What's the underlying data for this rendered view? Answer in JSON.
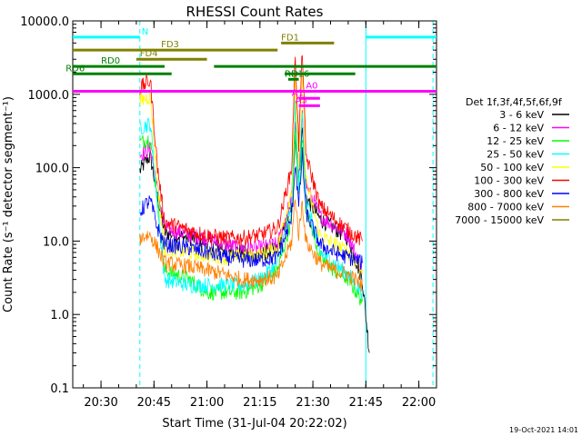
{
  "chart_data": {
    "type": "line",
    "title": "RHESSI Count Rates",
    "xlabel": "Start Time (31-Jul-04 20:22:02)",
    "ylabel": "Count Rate (s⁻¹ detector segment⁻¹)",
    "footer": "19-Oct-2021 14:01",
    "y_scale": "log",
    "ylim": [
      0.1,
      10000
    ],
    "y_ticks": [
      {
        "value": 0.1,
        "label": "0.1"
      },
      {
        "value": 1,
        "label": "1.0"
      },
      {
        "value": 10,
        "label": "10.0"
      },
      {
        "value": 100,
        "label": "100.0"
      },
      {
        "value": 1000,
        "label": "1000.0"
      },
      {
        "value": 10000,
        "label": "10000.0"
      }
    ],
    "xlim_minutes": [
      22,
      125
    ],
    "x_ticks": [
      {
        "value": 30,
        "label": "20:30"
      },
      {
        "value": 45,
        "label": "20:45"
      },
      {
        "value": 60,
        "label": "21:00"
      },
      {
        "value": 75,
        "label": "21:15"
      },
      {
        "value": 90,
        "label": "21:30"
      },
      {
        "value": 105,
        "label": "21:45"
      },
      {
        "value": 120,
        "label": "22:00"
      }
    ],
    "legend_title": "Det 1f,3f,4f,5f,6f,9f",
    "legend_position": "right",
    "series": [
      {
        "name": "3 - 6 keV",
        "color": "#000000",
        "points": [
          [
            41,
            90
          ],
          [
            43,
            130
          ],
          [
            44,
            140
          ],
          [
            46,
            40
          ],
          [
            48,
            13
          ],
          [
            55,
            11
          ],
          [
            60,
            9.5
          ],
          [
            65,
            8
          ],
          [
            70,
            7
          ],
          [
            75,
            6.5
          ],
          [
            80,
            8
          ],
          [
            84,
            30
          ],
          [
            85,
            300
          ],
          [
            86,
            60
          ],
          [
            87,
            350
          ],
          [
            88,
            40
          ],
          [
            92,
            20
          ],
          [
            96,
            15
          ],
          [
            100,
            11
          ],
          [
            104,
            3
          ],
          [
            106,
            0.3
          ]
        ]
      },
      {
        "name": "6 - 12 keV",
        "color": "#ff00ff",
        "points": [
          [
            41,
            150
          ],
          [
            43,
            170
          ],
          [
            44,
            180
          ],
          [
            46,
            50
          ],
          [
            48,
            15
          ],
          [
            55,
            12
          ],
          [
            60,
            11
          ],
          [
            65,
            9
          ],
          [
            70,
            8
          ],
          [
            75,
            8
          ],
          [
            80,
            9
          ],
          [
            84,
            40
          ],
          [
            85,
            450
          ],
          [
            86,
            70
          ],
          [
            87,
            500
          ],
          [
            88,
            60
          ],
          [
            92,
            22
          ],
          [
            96,
            16
          ],
          [
            100,
            12
          ],
          [
            104,
            4
          ]
        ]
      },
      {
        "name": "12 - 25 keV",
        "color": "#00ff00",
        "points": [
          [
            41,
            220
          ],
          [
            43,
            240
          ],
          [
            44,
            250
          ],
          [
            46,
            35
          ],
          [
            48,
            4
          ],
          [
            55,
            3
          ],
          [
            60,
            2
          ],
          [
            65,
            2
          ],
          [
            70,
            2
          ],
          [
            75,
            2.5
          ],
          [
            80,
            4
          ],
          [
            84,
            20
          ],
          [
            85,
            300
          ],
          [
            86,
            40
          ],
          [
            87,
            250
          ],
          [
            88,
            30
          ],
          [
            92,
            6
          ],
          [
            96,
            4
          ],
          [
            100,
            3
          ],
          [
            104,
            1.5
          ]
        ]
      },
      {
        "name": "25 - 50 keV",
        "color": "#00ffff",
        "points": [
          [
            41,
            350
          ],
          [
            43,
            380
          ],
          [
            44,
            400
          ],
          [
            46,
            30
          ],
          [
            48,
            3
          ],
          [
            55,
            2.5
          ],
          [
            60,
            2.5
          ],
          [
            65,
            2.5
          ],
          [
            70,
            2.5
          ],
          [
            75,
            3
          ],
          [
            80,
            5
          ],
          [
            84,
            30
          ],
          [
            85,
            650
          ],
          [
            86,
            50
          ],
          [
            87,
            600
          ],
          [
            88,
            40
          ],
          [
            92,
            7
          ],
          [
            96,
            5
          ],
          [
            100,
            3.5
          ],
          [
            104,
            2
          ]
        ]
      },
      {
        "name": "50 - 100 keV",
        "color": "#ffff00",
        "points": [
          [
            41,
            800
          ],
          [
            43,
            900
          ],
          [
            44,
            950
          ],
          [
            46,
            60
          ],
          [
            48,
            8
          ],
          [
            55,
            7
          ],
          [
            60,
            6.5
          ],
          [
            65,
            6
          ],
          [
            70,
            6
          ],
          [
            75,
            6.5
          ],
          [
            80,
            8
          ],
          [
            84,
            50
          ],
          [
            85,
            1500
          ],
          [
            86,
            100
          ],
          [
            87,
            1800
          ],
          [
            88,
            70
          ],
          [
            92,
            12
          ],
          [
            96,
            9
          ],
          [
            100,
            7
          ],
          [
            104,
            4
          ]
        ]
      },
      {
        "name": "100 - 300 keV",
        "color": "#ff0000",
        "points": [
          [
            41,
            1200
          ],
          [
            43,
            1450
          ],
          [
            44,
            1500
          ],
          [
            46,
            100
          ],
          [
            48,
            18
          ],
          [
            55,
            14
          ],
          [
            60,
            12
          ],
          [
            65,
            11
          ],
          [
            70,
            11
          ],
          [
            75,
            12
          ],
          [
            80,
            15
          ],
          [
            84,
            100
          ],
          [
            85,
            3500
          ],
          [
            86,
            200
          ],
          [
            87,
            4200
          ],
          [
            88,
            150
          ],
          [
            92,
            30
          ],
          [
            96,
            20
          ],
          [
            100,
            14
          ],
          [
            104,
            10
          ]
        ]
      },
      {
        "name": "300 - 800 keV",
        "color": "#0000ff",
        "points": [
          [
            41,
            25
          ],
          [
            43,
            33
          ],
          [
            44,
            35
          ],
          [
            46,
            15
          ],
          [
            48,
            9
          ],
          [
            55,
            8
          ],
          [
            60,
            7
          ],
          [
            65,
            6
          ],
          [
            70,
            5.5
          ],
          [
            75,
            5.5
          ],
          [
            80,
            6
          ],
          [
            84,
            20
          ],
          [
            85,
            120
          ],
          [
            86,
            30
          ],
          [
            87,
            150
          ],
          [
            88,
            25
          ],
          [
            92,
            9
          ],
          [
            96,
            7
          ],
          [
            100,
            6
          ],
          [
            104,
            5
          ]
        ]
      },
      {
        "name": "800 - 7000 keV",
        "color": "#ff8000",
        "points": [
          [
            41,
            11
          ],
          [
            43,
            12
          ],
          [
            44,
            12
          ],
          [
            46,
            8
          ],
          [
            48,
            5
          ],
          [
            55,
            4.5
          ],
          [
            60,
            4
          ],
          [
            65,
            3.5
          ],
          [
            70,
            3
          ],
          [
            75,
            3
          ],
          [
            80,
            3.2
          ],
          [
            84,
            10
          ],
          [
            85,
            40
          ],
          [
            86,
            12
          ],
          [
            87,
            35
          ],
          [
            88,
            10
          ],
          [
            92,
            5
          ],
          [
            96,
            4
          ],
          [
            100,
            3.5
          ],
          [
            104,
            2.5
          ]
        ]
      },
      {
        "name": "7000 - 15000 keV",
        "color": "#808000",
        "points": []
      }
    ],
    "attenuator_bars": [
      {
        "label": "N",
        "color": "#00ffff",
        "y": 6000,
        "segments": [
          [
            22,
            41
          ],
          [
            105,
            125
          ]
        ],
        "label_x": 41.5
      },
      {
        "label": "FD3",
        "color": "#808000",
        "y": 4000,
        "segments": [
          [
            22,
            80
          ]
        ],
        "label_x": 47
      },
      {
        "label": "FD4",
        "color": "#808000",
        "y": 3000,
        "segments": [
          [
            40,
            60
          ]
        ],
        "label_x": 41
      },
      {
        "label": "FD1",
        "color": "#808000",
        "y": 5000,
        "segments": [
          [
            81,
            96
          ]
        ],
        "label_x": 81
      },
      {
        "label": "RD0",
        "color": "#008000",
        "y": 2400,
        "segments": [
          [
            22,
            48
          ],
          [
            62,
            125
          ]
        ],
        "label_x": 30
      },
      {
        "label": "RD6",
        "color": "#008000",
        "y": 1900,
        "segments": [
          [
            22,
            50
          ],
          [
            82,
            102
          ]
        ],
        "label_x": 20
      },
      {
        "label": "RD16",
        "color": "#008000",
        "y": 1600,
        "segments": [
          [
            83,
            86
          ]
        ],
        "label_x": 82
      },
      {
        "label": "A0",
        "color": "#ff00ff",
        "y": 1100,
        "segments": [
          [
            22,
            125
          ]
        ],
        "label_x": 88
      },
      {
        "label": "A1",
        "color": "#ff00ff",
        "y": 880,
        "segments": [
          [
            86,
            92
          ]
        ],
        "label_x": 84
      },
      {
        "label": "A3",
        "color": "#ff00ff",
        "y": 700,
        "segments": [
          [
            86,
            92
          ]
        ],
        "label_x": 85
      }
    ],
    "vertical_lines": [
      {
        "x": 22,
        "color": "#00ffff",
        "style": "solid"
      },
      {
        "x": 41,
        "color": "#00ffff",
        "style": "dashed"
      },
      {
        "x": 105,
        "color": "#00ffff",
        "style": "solid"
      },
      {
        "x": 124,
        "color": "#00ffff",
        "style": "dashed"
      }
    ]
  }
}
